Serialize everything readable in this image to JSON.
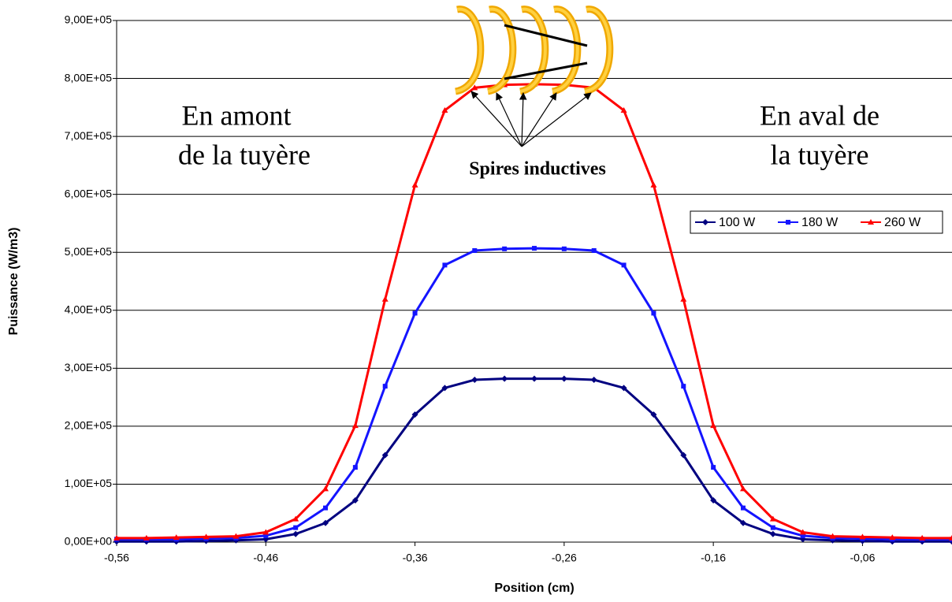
{
  "chart_data": {
    "type": "line",
    "xlabel": "Position (cm)",
    "ylabel": "Puissance (W/m3)",
    "annotations": [
      "En amont",
      "de la tuyère",
      "En aval de",
      "la tuyère",
      "Spires inductives"
    ],
    "x": [
      -0.56,
      -0.54,
      -0.52,
      -0.5,
      -0.48,
      -0.46,
      -0.44,
      -0.42,
      -0.4,
      -0.38,
      -0.36,
      -0.34,
      -0.32,
      -0.3,
      -0.28,
      -0.26,
      -0.24,
      -0.22,
      -0.2,
      -0.18,
      -0.16,
      -0.14,
      -0.12,
      -0.1,
      -0.08,
      -0.06,
      -0.04,
      -0.02,
      0
    ],
    "series": [
      {
        "name": "100 W",
        "color": "#000080",
        "marker": "diamond",
        "values": [
          1000,
          1000,
          1000,
          2000,
          3000,
          5000,
          14000,
          33000,
          72000,
          150000,
          220000,
          266000,
          280000,
          282000,
          282000,
          282000,
          280000,
          266000,
          220000,
          150000,
          72000,
          33000,
          14000,
          5000,
          3000,
          2000,
          1000,
          1000,
          1000
        ]
      },
      {
        "name": "180 W",
        "color": "#1414ff",
        "marker": "square",
        "values": [
          5000,
          5000,
          5000,
          6000,
          7000,
          11000,
          25000,
          59000,
          129000,
          269000,
          395000,
          478000,
          503000,
          506000,
          507000,
          506000,
          503000,
          478000,
          395000,
          269000,
          129000,
          59000,
          25000,
          11000,
          7000,
          6000,
          5000,
          5000,
          5000
        ]
      },
      {
        "name": "260 W",
        "color": "#ff0000",
        "marker": "triangle",
        "values": [
          7000,
          7000,
          8000,
          9000,
          10000,
          17000,
          40000,
          92000,
          201000,
          419000,
          616000,
          745000,
          784000,
          789000,
          790000,
          789000,
          784000,
          745000,
          616000,
          419000,
          201000,
          92000,
          40000,
          17000,
          10000,
          9000,
          8000,
          7000,
          7000
        ]
      }
    ],
    "xlim": [
      -0.56,
      0
    ],
    "xticks": [
      {
        "value": -0.56,
        "label": "-0,56"
      },
      {
        "value": -0.46,
        "label": "-0,46"
      },
      {
        "value": -0.36,
        "label": "-0,36"
      },
      {
        "value": -0.26,
        "label": "-0,26"
      },
      {
        "value": -0.16,
        "label": "-0,16"
      },
      {
        "value": -0.06,
        "label": "-0,06"
      }
    ],
    "ylim": [
      0,
      900000
    ],
    "yticks": [
      {
        "value": 0,
        "label": "0,00E+00"
      },
      {
        "value": 100000,
        "label": "1,00E+05"
      },
      {
        "value": 200000,
        "label": "2,00E+05"
      },
      {
        "value": 300000,
        "label": "3,00E+05"
      },
      {
        "value": 400000,
        "label": "4,00E+05"
      },
      {
        "value": 500000,
        "label": "5,00E+05"
      },
      {
        "value": 600000,
        "label": "6,00E+05"
      },
      {
        "value": 700000,
        "label": "7,00E+05"
      },
      {
        "value": 800000,
        "label": "8,00E+05"
      },
      {
        "value": 900000,
        "label": "9,00E+05"
      }
    ],
    "grid": true,
    "legend": "right"
  }
}
